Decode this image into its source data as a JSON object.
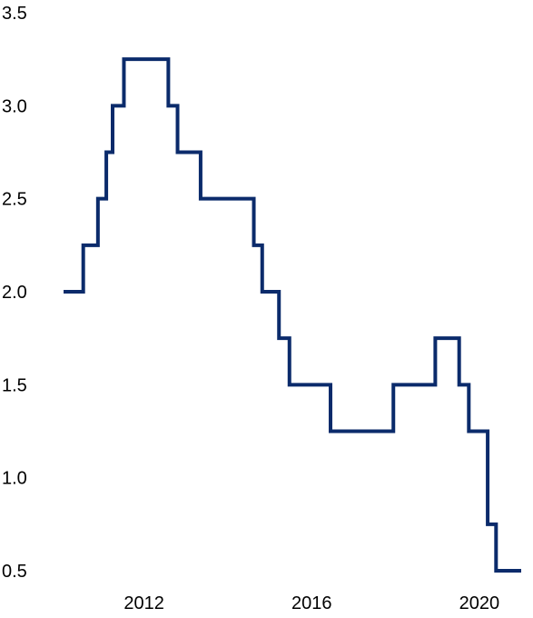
{
  "chart_data": {
    "type": "line",
    "step": true,
    "title": "",
    "xlabel": "",
    "ylabel": "",
    "ylim": [
      0.5,
      3.5
    ],
    "xlim": [
      2010.08,
      2021.0
    ],
    "y_ticks": [
      "0.5",
      "1.0",
      "1.5",
      "2.0",
      "2.5",
      "3.0",
      "3.5"
    ],
    "x_ticks": [
      "2012",
      "2016",
      "2020"
    ],
    "grid": false,
    "legend": "none",
    "series": [
      {
        "color": "#0b2b6b",
        "points": [
          [
            2010.08,
            2.0
          ],
          [
            2010.55,
            2.25
          ],
          [
            2010.9,
            2.5
          ],
          [
            2011.1,
            2.75
          ],
          [
            2011.25,
            3.0
          ],
          [
            2011.52,
            3.25
          ],
          [
            2012.58,
            3.0
          ],
          [
            2012.8,
            2.75
          ],
          [
            2013.35,
            2.5
          ],
          [
            2014.62,
            2.25
          ],
          [
            2014.82,
            2.0
          ],
          [
            2015.22,
            1.75
          ],
          [
            2015.47,
            1.5
          ],
          [
            2016.45,
            1.25
          ],
          [
            2017.95,
            1.5
          ],
          [
            2018.95,
            1.75
          ],
          [
            2019.52,
            1.5
          ],
          [
            2019.75,
            1.25
          ],
          [
            2020.2,
            0.75
          ],
          [
            2020.4,
            0.5
          ],
          [
            2021.0,
            0.5
          ]
        ]
      }
    ]
  }
}
